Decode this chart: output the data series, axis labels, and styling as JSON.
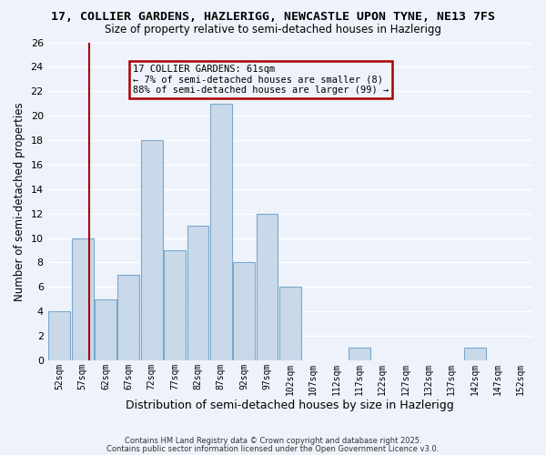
{
  "title1": "17, COLLIER GARDENS, HAZLERIGG, NEWCASTLE UPON TYNE, NE13 7FS",
  "title2": "Size of property relative to semi-detached houses in Hazlerigg",
  "xlabel": "Distribution of semi-detached houses by size in Hazlerigg",
  "ylabel": "Number of semi-detached properties",
  "bin_labels": [
    "52sqm",
    "57sqm",
    "62sqm",
    "67sqm",
    "72sqm",
    "77sqm",
    "82sqm",
    "87sqm",
    "92sqm",
    "97sqm",
    "102sqm",
    "107sqm",
    "112sqm",
    "117sqm",
    "122sqm",
    "127sqm",
    "132sqm",
    "137sqm",
    "142sqm",
    "147sqm",
    "152sqm"
  ],
  "bin_left_edges": [
    52,
    57,
    62,
    67,
    72,
    77,
    82,
    87,
    92,
    97,
    102,
    107,
    112,
    117,
    122,
    127,
    132,
    137,
    142,
    147,
    152
  ],
  "bar_heights": [
    4,
    10,
    5,
    7,
    18,
    9,
    11,
    21,
    8,
    12,
    6,
    0,
    0,
    1,
    0,
    0,
    0,
    0,
    1,
    0,
    0
  ],
  "bar_color": "#c9d9ea",
  "bar_edge_color": "#7aa8cc",
  "property_value": 61,
  "vline_color": "#aa0000",
  "ylim": [
    0,
    26
  ],
  "yticks": [
    0,
    2,
    4,
    6,
    8,
    10,
    12,
    14,
    16,
    18,
    20,
    22,
    24,
    26
  ],
  "annotation_title": "17 COLLIER GARDENS: 61sqm",
  "annotation_line1": "← 7% of semi-detached houses are smaller (8)",
  "annotation_line2": "88% of semi-detached houses are larger (99) →",
  "footnote1": "Contains HM Land Registry data © Crown copyright and database right 2025.",
  "footnote2": "Contains public sector information licensed under the Open Government Licence v3.0.",
  "bg_color": "#eef3fb",
  "plot_bg_color": "#eef3fb",
  "grid_color": "#ffffff"
}
